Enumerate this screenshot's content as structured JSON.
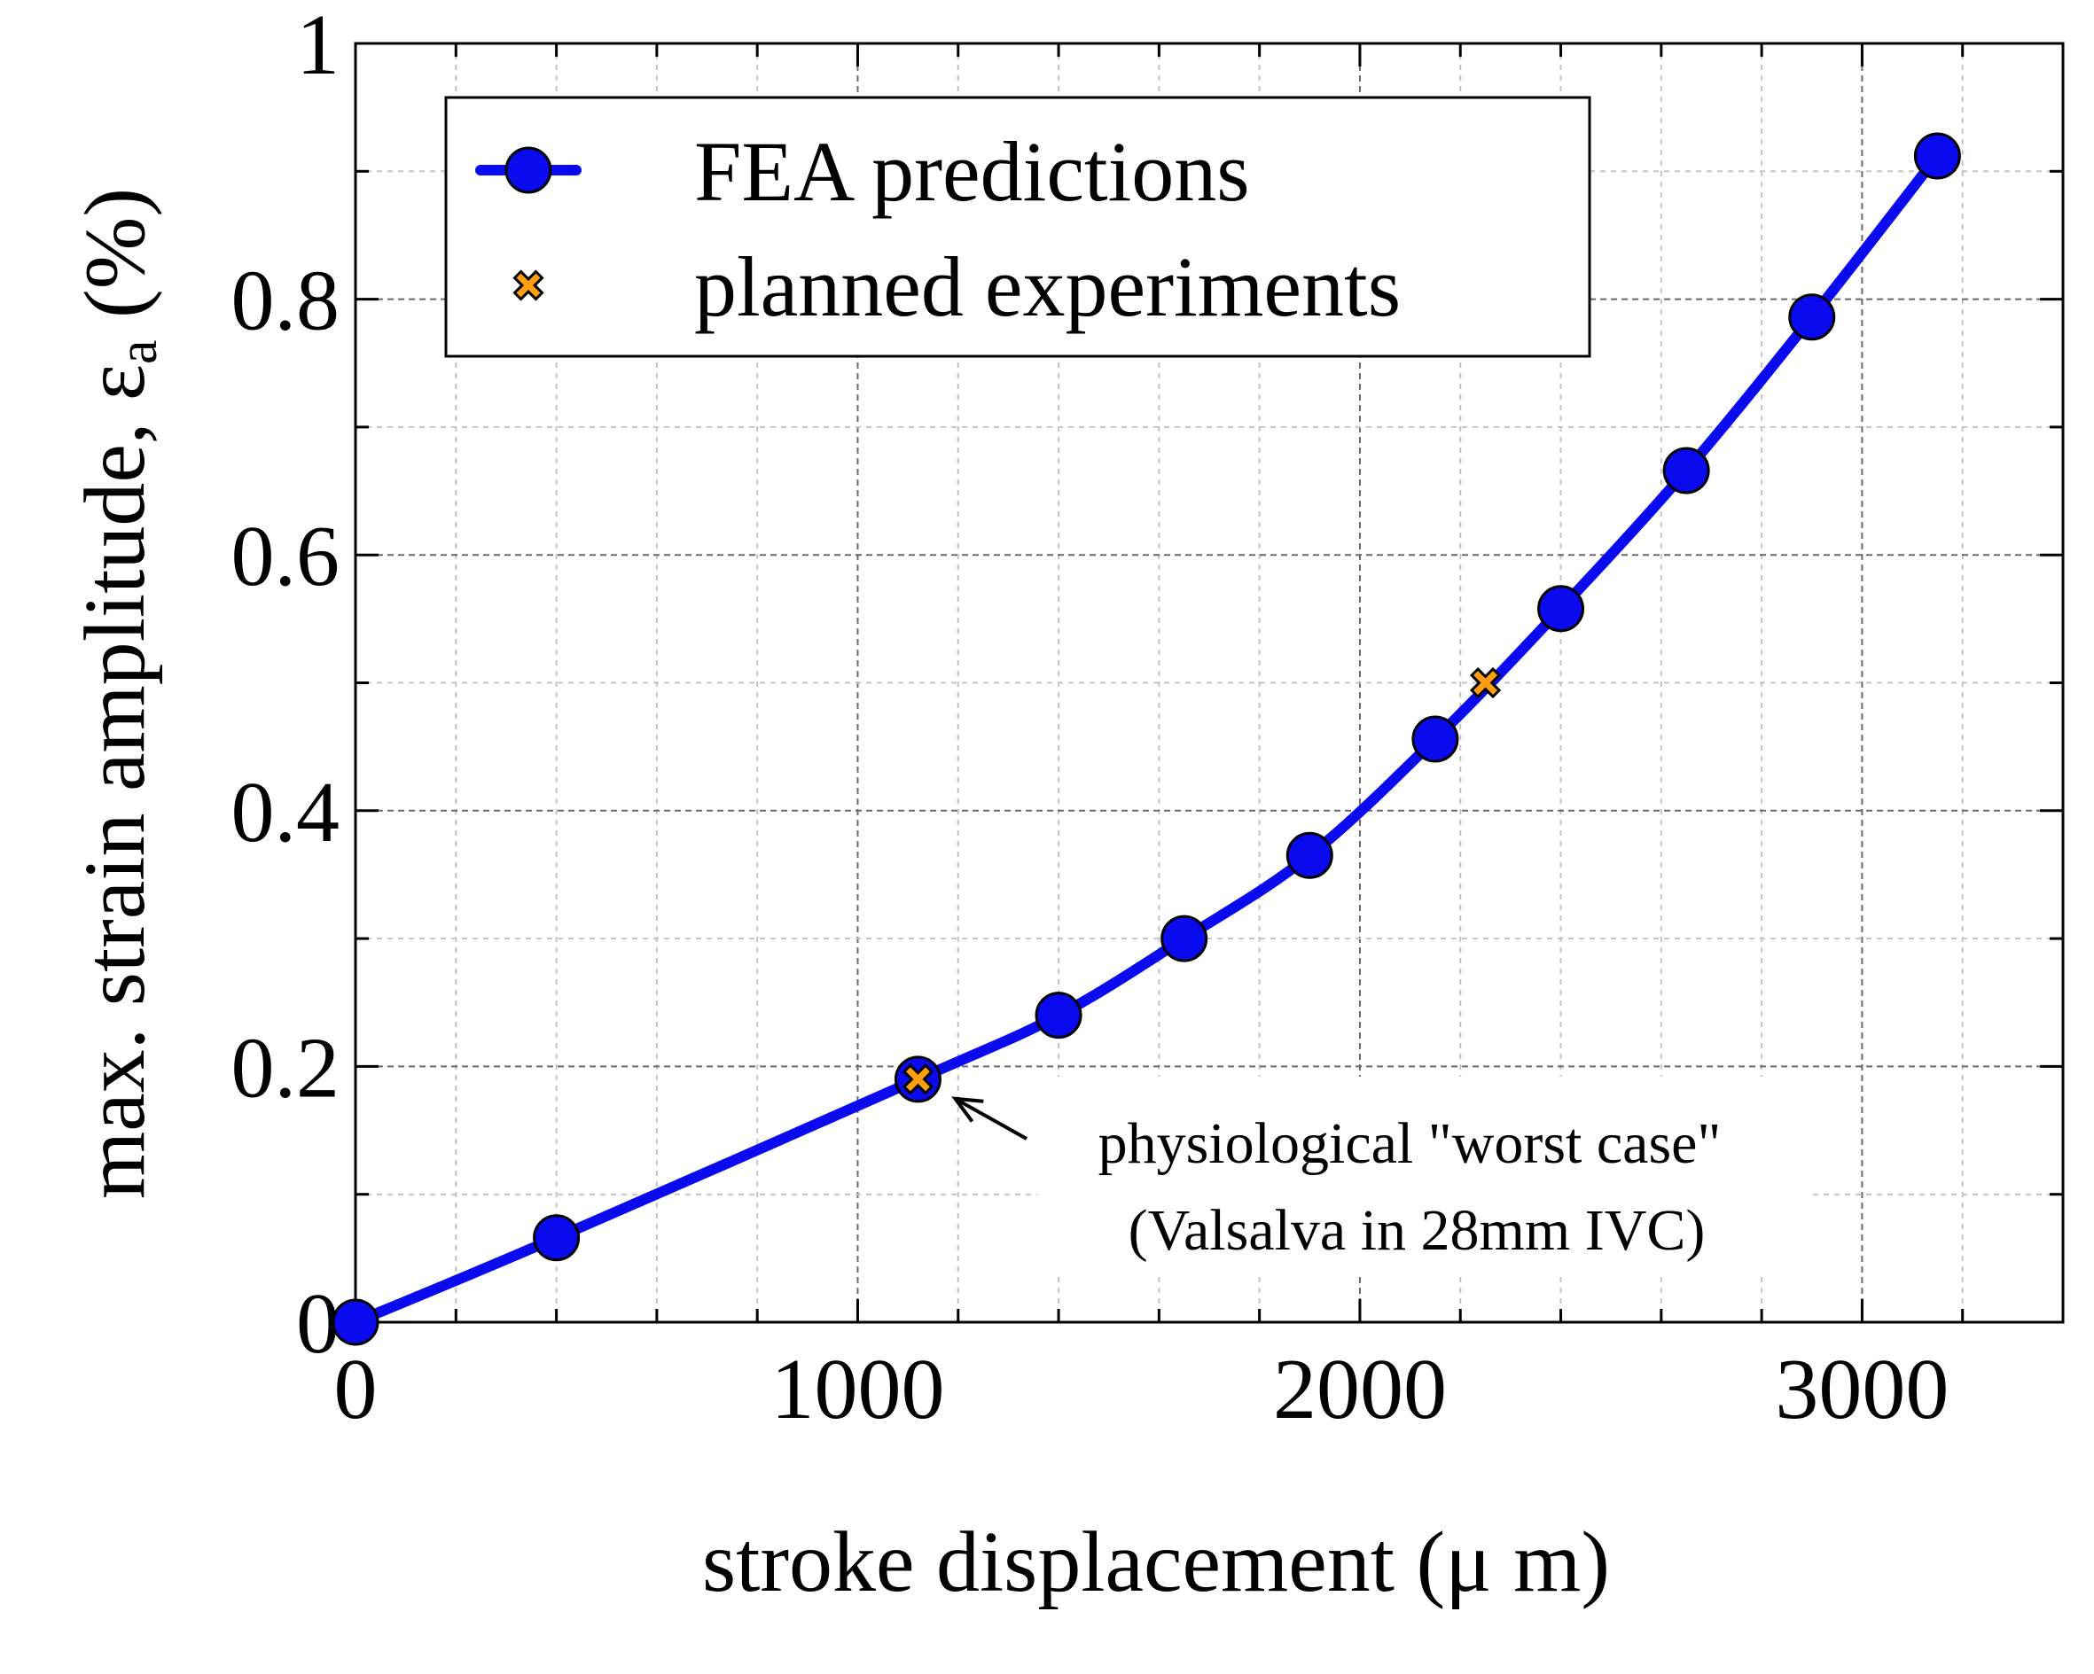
{
  "chart_data": {
    "type": "line",
    "title": "",
    "xlabel": "stroke displacement (μ m)",
    "ylabel_prefix": "max. strain amplitude, ε",
    "ylabel_subscript": "a",
    "ylabel_suffix": " (%)",
    "xlim": [
      0,
      3400
    ],
    "ylim": [
      0,
      1
    ],
    "xticks": [
      {
        "value": 0,
        "label": "0"
      },
      {
        "value": 1000,
        "label": "1000"
      },
      {
        "value": 2000,
        "label": "2000"
      },
      {
        "value": 3000,
        "label": "3000"
      }
    ],
    "yticks": [
      {
        "value": 0,
        "label": "0"
      },
      {
        "value": 0.2,
        "label": "0.2"
      },
      {
        "value": 0.4,
        "label": "0.4"
      },
      {
        "value": 0.6,
        "label": "0.6"
      },
      {
        "value": 0.8,
        "label": "0.8"
      },
      {
        "value": 1,
        "label": "1"
      }
    ],
    "x_minor_step": 200,
    "y_minor_step": 0.1,
    "grid": true,
    "legend_position": "top-left",
    "series": [
      {
        "name": "FEA predictions",
        "marker": "circle",
        "color": "#0a0aee",
        "points": [
          {
            "x": 0,
            "y": 0
          },
          {
            "x": 400,
            "y": 0.066
          },
          {
            "x": 1120,
            "y": 0.19
          },
          {
            "x": 1400,
            "y": 0.24
          },
          {
            "x": 1650,
            "y": 0.3
          },
          {
            "x": 1900,
            "y": 0.365
          },
          {
            "x": 2150,
            "y": 0.456
          },
          {
            "x": 2400,
            "y": 0.558
          },
          {
            "x": 2650,
            "y": 0.666
          },
          {
            "x": 2900,
            "y": 0.786
          },
          {
            "x": 3150,
            "y": 0.912
          }
        ]
      },
      {
        "name": "planned experiments",
        "marker": "x",
        "color": "#ff9f0f",
        "points": [
          {
            "x": 1120,
            "y": 0.19
          },
          {
            "x": 2250,
            "y": 0.5
          }
        ]
      }
    ],
    "annotations": [
      {
        "lines": [
          "physiological \"worst case\"",
          "(Valsalva in 28mm IVC)"
        ],
        "x": 1120,
        "y": 0.19
      }
    ]
  }
}
